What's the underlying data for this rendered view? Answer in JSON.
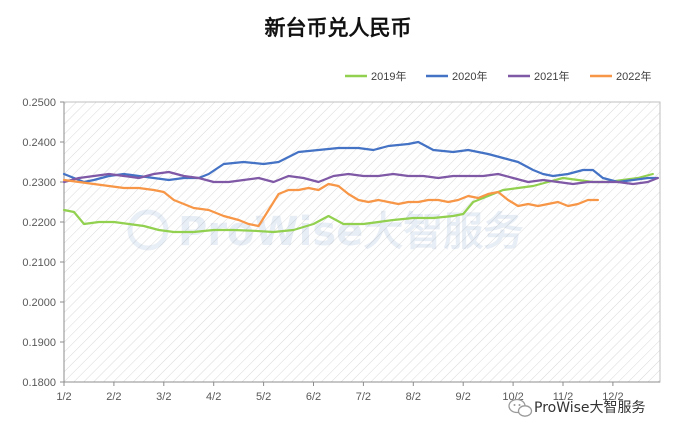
{
  "chart_data": {
    "type": "line",
    "title": "新台币兑人民币",
    "xlabel": "",
    "ylabel": "",
    "ylim": [
      0.18,
      0.25
    ],
    "y_ticks": [
      "0.1800",
      "0.1900",
      "0.2000",
      "0.2100",
      "0.2200",
      "0.2300",
      "0.2400",
      "0.2500"
    ],
    "x_ticks": [
      "1/2",
      "2/2",
      "3/2",
      "4/2",
      "5/2",
      "6/2",
      "7/2",
      "8/2",
      "9/2",
      "10/2",
      "11/2",
      "12/2"
    ],
    "grid": "diagonal hatched plot area",
    "legend_position": "top-right",
    "series": [
      {
        "name": "2019年",
        "color": "#92d050",
        "points": [
          [
            0,
            0.223
          ],
          [
            0.2,
            0.2225
          ],
          [
            0.4,
            0.2195
          ],
          [
            0.7,
            0.22
          ],
          [
            1.0,
            0.22
          ],
          [
            1.3,
            0.2195
          ],
          [
            1.6,
            0.219
          ],
          [
            1.9,
            0.218
          ],
          [
            2.2,
            0.2175
          ],
          [
            2.6,
            0.2175
          ],
          [
            3.0,
            0.218
          ],
          [
            3.4,
            0.218
          ],
          [
            3.8,
            0.2178
          ],
          [
            4.2,
            0.2175
          ],
          [
            4.6,
            0.218
          ],
          [
            5.0,
            0.2195
          ],
          [
            5.3,
            0.2215
          ],
          [
            5.6,
            0.2195
          ],
          [
            6.0,
            0.2195
          ],
          [
            6.3,
            0.22
          ],
          [
            6.6,
            0.2205
          ],
          [
            7.0,
            0.221
          ],
          [
            7.4,
            0.221
          ],
          [
            7.8,
            0.2215
          ],
          [
            8.0,
            0.222
          ],
          [
            8.2,
            0.225
          ],
          [
            8.5,
            0.2265
          ],
          [
            8.8,
            0.228
          ],
          [
            9.1,
            0.2285
          ],
          [
            9.4,
            0.229
          ],
          [
            9.7,
            0.23
          ],
          [
            10.0,
            0.231
          ],
          [
            10.3,
            0.2305
          ],
          [
            10.6,
            0.23
          ],
          [
            10.9,
            0.23
          ],
          [
            11.2,
            0.2305
          ],
          [
            11.5,
            0.231
          ],
          [
            11.8,
            0.232
          ]
        ]
      },
      {
        "name": "2020年",
        "color": "#4472c4",
        "points": [
          [
            0,
            0.232
          ],
          [
            0.2,
            0.231
          ],
          [
            0.4,
            0.23
          ],
          [
            0.6,
            0.2305
          ],
          [
            0.9,
            0.2315
          ],
          [
            1.2,
            0.232
          ],
          [
            1.5,
            0.2315
          ],
          [
            1.8,
            0.231
          ],
          [
            2.1,
            0.2305
          ],
          [
            2.4,
            0.231
          ],
          [
            2.7,
            0.231
          ],
          [
            2.9,
            0.232
          ],
          [
            3.2,
            0.2345
          ],
          [
            3.6,
            0.235
          ],
          [
            4.0,
            0.2345
          ],
          [
            4.3,
            0.235
          ],
          [
            4.7,
            0.2375
          ],
          [
            5.1,
            0.238
          ],
          [
            5.5,
            0.2385
          ],
          [
            5.9,
            0.2385
          ],
          [
            6.2,
            0.238
          ],
          [
            6.5,
            0.239
          ],
          [
            6.9,
            0.2395
          ],
          [
            7.1,
            0.24
          ],
          [
            7.4,
            0.238
          ],
          [
            7.8,
            0.2375
          ],
          [
            8.1,
            0.238
          ],
          [
            8.5,
            0.237
          ],
          [
            8.8,
            0.236
          ],
          [
            9.1,
            0.235
          ],
          [
            9.4,
            0.233
          ],
          [
            9.6,
            0.232
          ],
          [
            9.8,
            0.2315
          ],
          [
            10.1,
            0.232
          ],
          [
            10.4,
            0.233
          ],
          [
            10.6,
            0.233
          ],
          [
            10.8,
            0.231
          ],
          [
            11.1,
            0.23
          ],
          [
            11.4,
            0.2305
          ],
          [
            11.7,
            0.231
          ],
          [
            11.9,
            0.231
          ]
        ]
      },
      {
        "name": "2021年",
        "color": "#7f58a6",
        "points": [
          [
            0,
            0.23
          ],
          [
            0.3,
            0.231
          ],
          [
            0.6,
            0.2315
          ],
          [
            0.9,
            0.232
          ],
          [
            1.2,
            0.2315
          ],
          [
            1.5,
            0.231
          ],
          [
            1.8,
            0.232
          ],
          [
            2.1,
            0.2325
          ],
          [
            2.4,
            0.2315
          ],
          [
            2.7,
            0.231
          ],
          [
            3.0,
            0.23
          ],
          [
            3.3,
            0.23
          ],
          [
            3.6,
            0.2305
          ],
          [
            3.9,
            0.231
          ],
          [
            4.2,
            0.23
          ],
          [
            4.5,
            0.2315
          ],
          [
            4.8,
            0.231
          ],
          [
            5.1,
            0.23
          ],
          [
            5.4,
            0.2315
          ],
          [
            5.7,
            0.232
          ],
          [
            6.0,
            0.2315
          ],
          [
            6.3,
            0.2315
          ],
          [
            6.6,
            0.232
          ],
          [
            6.9,
            0.2315
          ],
          [
            7.2,
            0.2315
          ],
          [
            7.5,
            0.231
          ],
          [
            7.8,
            0.2315
          ],
          [
            8.1,
            0.2315
          ],
          [
            8.4,
            0.2315
          ],
          [
            8.7,
            0.232
          ],
          [
            9.0,
            0.231
          ],
          [
            9.3,
            0.23
          ],
          [
            9.6,
            0.2305
          ],
          [
            9.9,
            0.23
          ],
          [
            10.2,
            0.2295
          ],
          [
            10.5,
            0.23
          ],
          [
            10.8,
            0.23
          ],
          [
            11.1,
            0.23
          ],
          [
            11.4,
            0.2295
          ],
          [
            11.7,
            0.23
          ],
          [
            11.9,
            0.231
          ]
        ]
      },
      {
        "name": "2022年",
        "color": "#f79646",
        "points": [
          [
            0,
            0.2305
          ],
          [
            0.3,
            0.23
          ],
          [
            0.6,
            0.2295
          ],
          [
            0.9,
            0.229
          ],
          [
            1.2,
            0.2285
          ],
          [
            1.5,
            0.2285
          ],
          [
            1.8,
            0.228
          ],
          [
            2.0,
            0.2275
          ],
          [
            2.2,
            0.2255
          ],
          [
            2.4,
            0.2245
          ],
          [
            2.6,
            0.2235
          ],
          [
            2.9,
            0.223
          ],
          [
            3.2,
            0.2215
          ],
          [
            3.5,
            0.2205
          ],
          [
            3.7,
            0.2195
          ],
          [
            3.9,
            0.219
          ],
          [
            4.1,
            0.223
          ],
          [
            4.3,
            0.227
          ],
          [
            4.5,
            0.228
          ],
          [
            4.7,
            0.228
          ],
          [
            4.9,
            0.2285
          ],
          [
            5.1,
            0.228
          ],
          [
            5.3,
            0.2295
          ],
          [
            5.5,
            0.229
          ],
          [
            5.7,
            0.227
          ],
          [
            5.9,
            0.2255
          ],
          [
            6.1,
            0.225
          ],
          [
            6.3,
            0.2255
          ],
          [
            6.5,
            0.225
          ],
          [
            6.7,
            0.2245
          ],
          [
            6.9,
            0.225
          ],
          [
            7.1,
            0.225
          ],
          [
            7.3,
            0.2255
          ],
          [
            7.5,
            0.2255
          ],
          [
            7.7,
            0.225
          ],
          [
            7.9,
            0.2255
          ],
          [
            8.1,
            0.2265
          ],
          [
            8.3,
            0.226
          ],
          [
            8.5,
            0.227
          ],
          [
            8.7,
            0.2275
          ],
          [
            8.9,
            0.2255
          ],
          [
            9.1,
            0.224
          ],
          [
            9.3,
            0.2245
          ],
          [
            9.5,
            0.224
          ],
          [
            9.7,
            0.2245
          ],
          [
            9.9,
            0.225
          ],
          [
            10.1,
            0.224
          ],
          [
            10.3,
            0.2245
          ],
          [
            10.5,
            0.2255
          ],
          [
            10.7,
            0.2255
          ]
        ]
      }
    ]
  },
  "watermark": "ProWise大智服务",
  "footer": {
    "brand_text": "ProWise大智服务",
    "icon": "wechat-icon"
  }
}
